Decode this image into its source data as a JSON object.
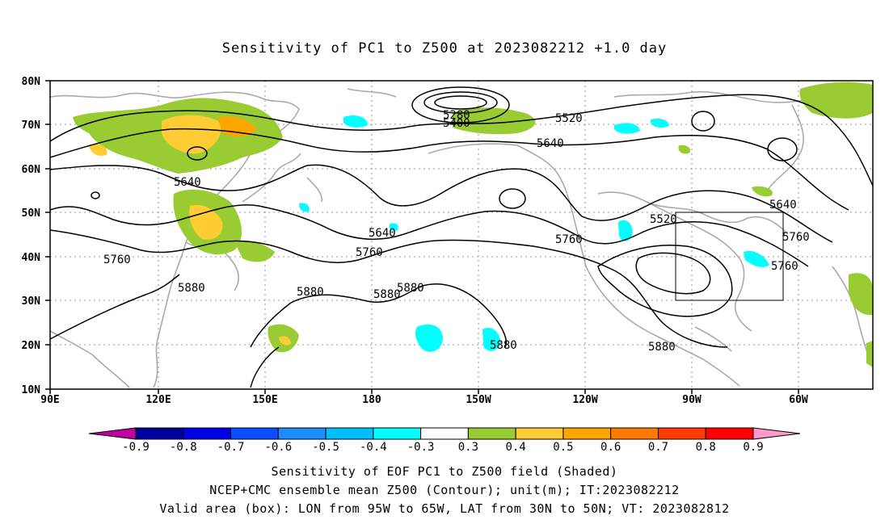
{
  "title": "Sensitivity of PC1 to Z500 at 2023082212 +1.0 day",
  "lat_labels": [
    "80N",
    "70N",
    "60N",
    "50N",
    "40N",
    "30N",
    "20N",
    "10N"
  ],
  "lon_labels": [
    "90E",
    "120E",
    "150E",
    "180",
    "150W",
    "120W",
    "90W",
    "60W"
  ],
  "contour_labels": [
    {
      "text": "5280"
    },
    {
      "text": "5400"
    },
    {
      "text": "5520"
    },
    {
      "text": "5640"
    },
    {
      "text": "5640"
    },
    {
      "text": "5640"
    },
    {
      "text": "5760"
    },
    {
      "text": "5760"
    },
    {
      "text": "5760"
    },
    {
      "text": "5880"
    },
    {
      "text": "5880"
    },
    {
      "text": "5880"
    },
    {
      "text": "5880"
    },
    {
      "text": "5880"
    },
    {
      "text": "5880"
    },
    {
      "text": "5520"
    },
    {
      "text": "5640"
    },
    {
      "text": "5760"
    }
  ],
  "colorbar": {
    "labels": [
      "-0.9",
      "-0.8",
      "-0.7",
      "-0.6",
      "-0.5",
      "-0.4",
      "-0.3",
      "0.3",
      "0.4",
      "0.5",
      "0.6",
      "0.7",
      "0.8",
      "0.9"
    ],
    "colors": [
      "#0000a0",
      "#0000e6",
      "#0a4fff",
      "#1e8cff",
      "#00bfff",
      "#00ffff",
      "#ffffff",
      "#99cc33",
      "#ffcc33",
      "#ffa500",
      "#ff7a00",
      "#ff3c00",
      "#ff0000"
    ],
    "low_end_color": "#c000a0",
    "high_end_color": "#ff99cc"
  },
  "box": {
    "lon_w": "95W",
    "lon_e": "65W",
    "lat_s": "30N",
    "lat_n": "50N"
  },
  "captions": {
    "line1": "Sensitivity of EOF PC1 to Z500 field (Shaded)",
    "line2": "NCEP+CMC ensemble mean Z500 (Contour); unit(m); IT:2023082212",
    "line3": "Valid area (box): LON from 95W to 65W, LAT from 30N to 50N; VT: 2023082812"
  }
}
